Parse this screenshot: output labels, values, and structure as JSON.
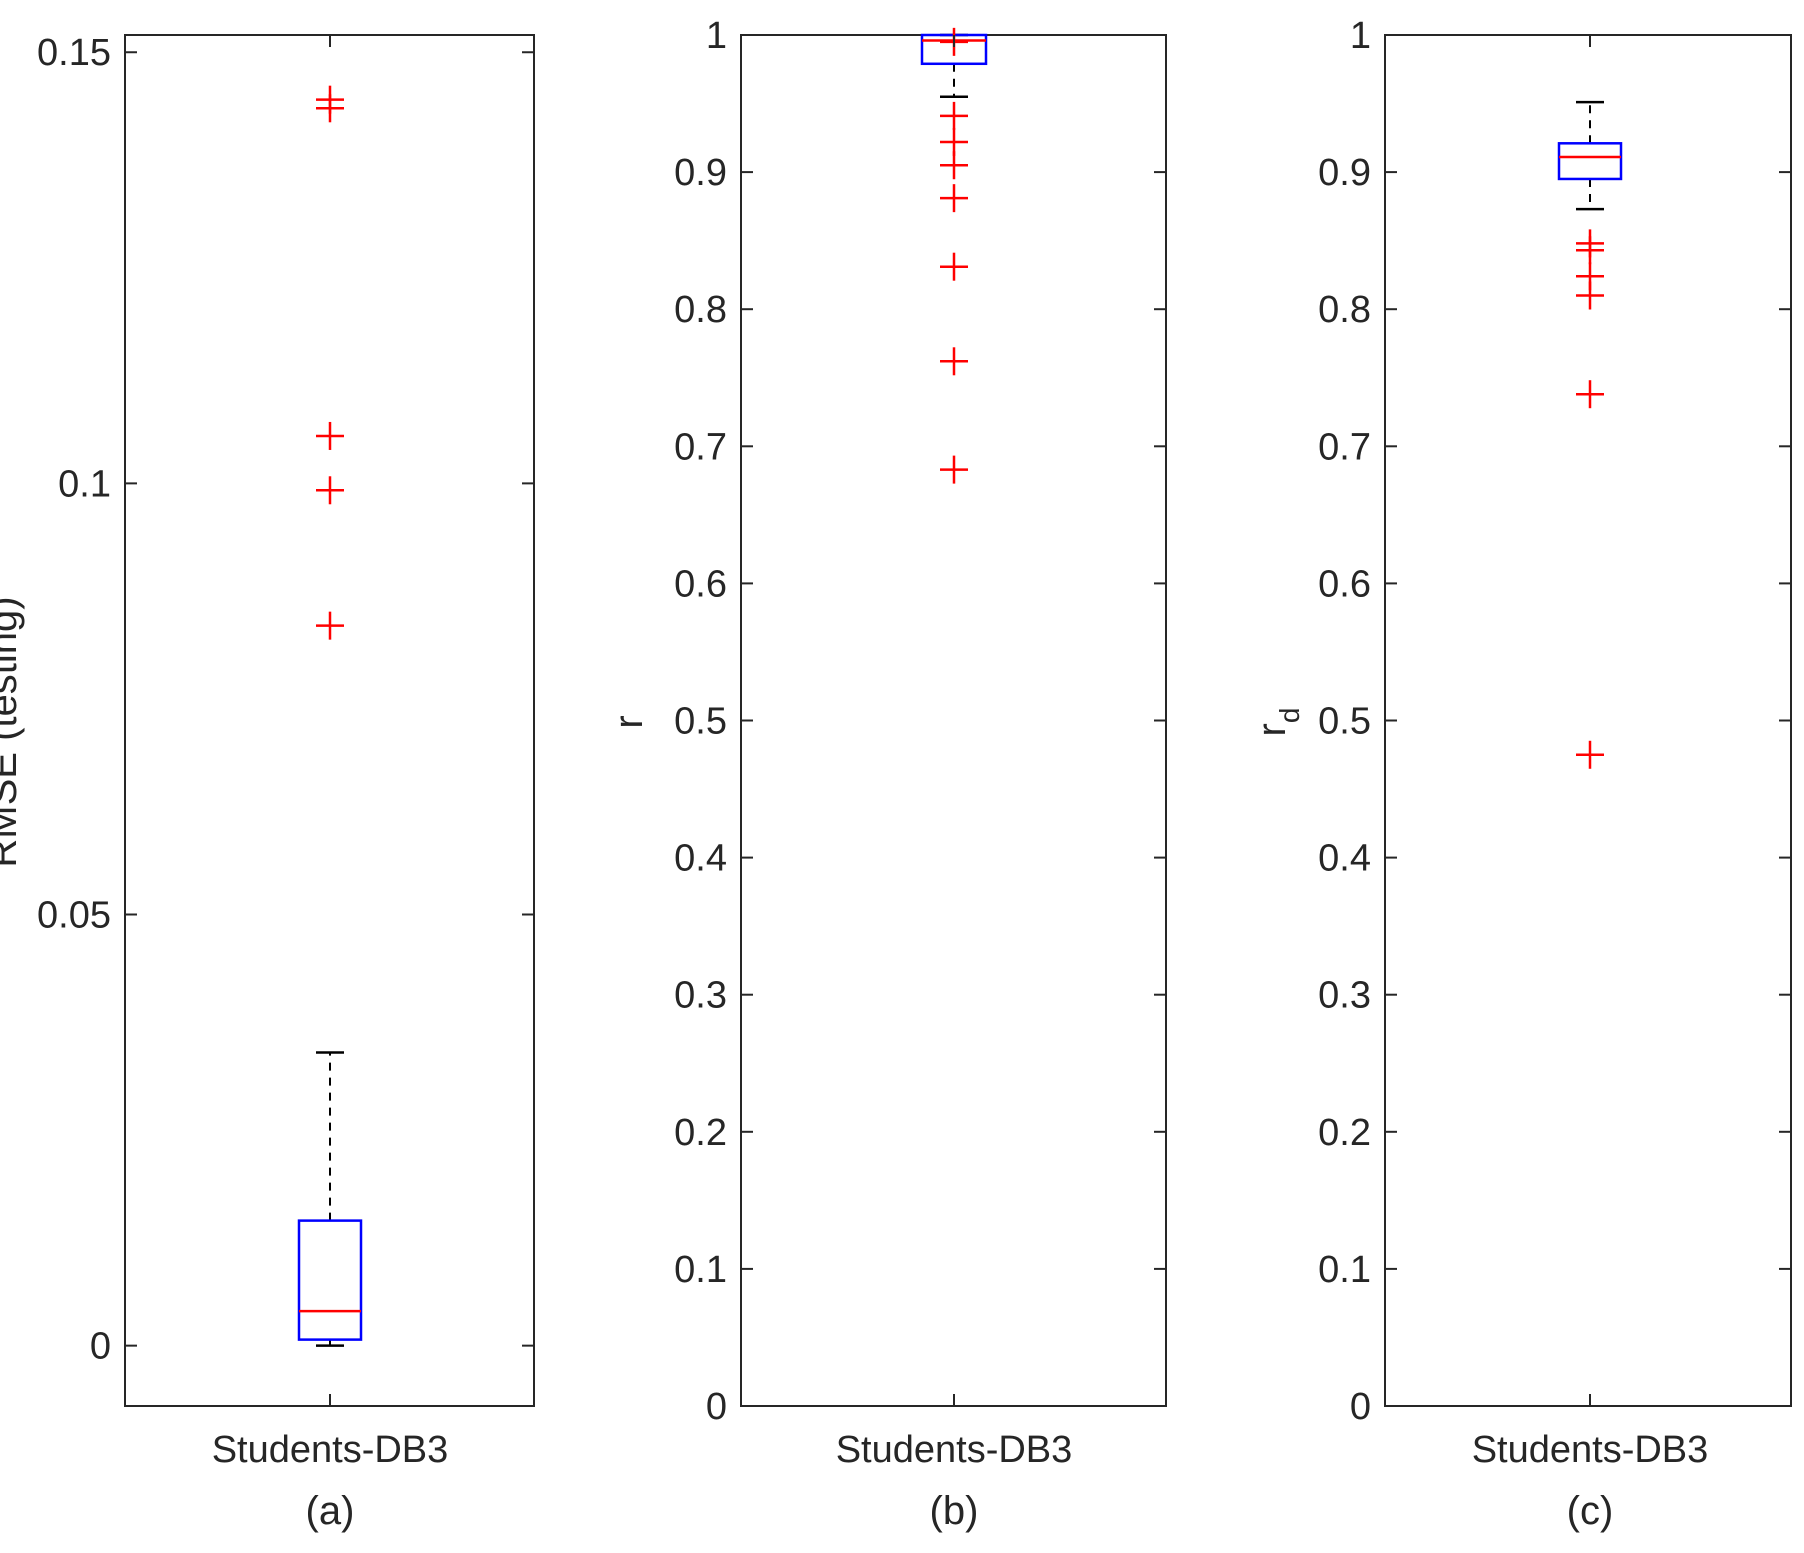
{
  "chart_data": [
    {
      "type": "box",
      "panel_label": "(a)",
      "category": "Students-DB3",
      "ylabel": "RMSE (testing)",
      "ylim": [
        -0.007,
        0.152
      ],
      "yticks": [
        0,
        0.05,
        0.1,
        0.15
      ],
      "ytick_labels": [
        "0",
        "0.05",
        "0.1",
        "0.15"
      ],
      "box": {
        "whisker_low": 0.0,
        "q1": 0.0007,
        "median": 0.004,
        "q3": 0.0145,
        "whisker_high": 0.034
      },
      "outliers": [
        0.0835,
        0.0992,
        0.1055,
        0.1435,
        0.1445
      ]
    },
    {
      "type": "box",
      "panel_label": "(b)",
      "category": "Students-DB3",
      "ylabel": "r",
      "ylim": [
        0,
        1
      ],
      "yticks": [
        0,
        0.1,
        0.2,
        0.3,
        0.4,
        0.5,
        0.6,
        0.7,
        0.8,
        0.9,
        1
      ],
      "ytick_labels": [
        "0",
        "0.1",
        "0.2",
        "0.3",
        "0.4",
        "0.5",
        "0.6",
        "0.7",
        "0.8",
        "0.9",
        "1"
      ],
      "box": {
        "whisker_low": 0.955,
        "q1": 0.979,
        "median": 0.996,
        "q3": 1.0,
        "whisker_high": 1.0
      },
      "outliers": [
        0.683,
        0.762,
        0.831,
        0.881,
        0.905,
        0.922,
        0.941,
        0.995
      ]
    },
    {
      "type": "box",
      "panel_label": "(c)",
      "category": "Students-DB3",
      "ylabel": "r",
      "ylabel_subscript": "d",
      "ylim": [
        0,
        1
      ],
      "yticks": [
        0,
        0.1,
        0.2,
        0.3,
        0.4,
        0.5,
        0.6,
        0.7,
        0.8,
        0.9,
        1
      ],
      "ytick_labels": [
        "0",
        "0.1",
        "0.2",
        "0.3",
        "0.4",
        "0.5",
        "0.6",
        "0.7",
        "0.8",
        "0.9",
        "1"
      ],
      "box": {
        "whisker_low": 0.873,
        "q1": 0.895,
        "median": 0.911,
        "q3": 0.921,
        "whisker_high": 0.951
      },
      "outliers": [
        0.475,
        0.738,
        0.81,
        0.824,
        0.843,
        0.848
      ]
    }
  ],
  "colors": {
    "box": "#0000ff",
    "median": "#ff0000",
    "outlier": "#ff0000",
    "whisker": "#000000",
    "axes": "#262626"
  }
}
